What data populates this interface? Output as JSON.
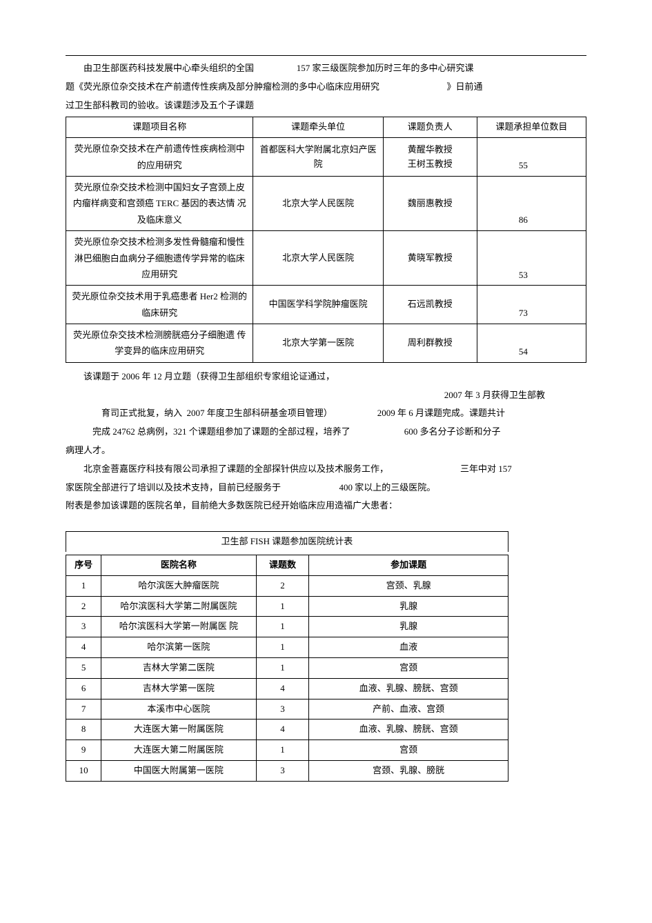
{
  "intro": {
    "p1a": "由卫生部医药科技发展中心牵头组织的全国",
    "p1b": "157 家三级医院参加历时三年的多中心研究课",
    "p2a": "题《荧光原位杂交技术在产前遗传性疾病及部分肿瘤检测的多中心临床应用研究",
    "p2b": "》日前通",
    "p3": "过卫生部科教司的验收。该课题涉及五个子课题"
  },
  "table1": {
    "headers": [
      "课题项目名称",
      "课题牵头单位",
      "课题负责人",
      "课题承担单位数目"
    ],
    "rows": [
      {
        "name": "荧光原位杂交技术在产前遗传性疾病检测中的应用研究",
        "unit": "首都医科大学附属北京妇产医院",
        "leader": "黄醒华教授\n王树玉教授",
        "count": "55"
      },
      {
        "name": "荧光原位杂交技术检测中国妇女子宫颈上皮内瘤样病变和宫颈癌  TERC 基因的表达情  况及临床意义",
        "unit": "北京大学人民医院",
        "leader": "魏丽惠教授",
        "count": "86"
      },
      {
        "name": "荧光原位杂交技术检测多发性骨髓瘤和慢性淋巴细胞白血病分子细胞遗传学异常的临床应用研究",
        "unit": "北京大学人民医院",
        "leader": "黄晓军教授",
        "count": "53"
      },
      {
        "name": "荧光原位杂交技术用于乳癌患者      Her2 检测的临床研究",
        "unit": "中国医学科学院肿瘤医院",
        "leader": "石远凯教授",
        "count": "73"
      },
      {
        "name": "荧光原位杂交技术检测膀胱癌分子细胞遗  传学变异的临床应用研究",
        "unit": "北京大学第一医院",
        "leader": "周利群教授",
        "count": "54"
      }
    ]
  },
  "mid": {
    "p1": "该课题于 2006 年 12 月立题（获得卫生部组织专家组论证通过，",
    "p1r": "2007 年 3 月获得卫生部教",
    "p2a": "育司正式批复，纳入  2007 年度卫生部科研基金项目管理）",
    "p2b": "2009 年 6 月课题完成。课题共计",
    "p3a": "完成 24762 总病例，321 个课题组参加了课题的全部过程，培养了",
    "p3b": "600 多名分子诊断和分子",
    "p4": "病理人才。",
    "p5a": "北京金菩嘉医疗科技有限公司承担了课题的全部探针供应以及技术服务工作，",
    "p5b": "三年中对 157",
    "p6a": "家医院全部进行了培训以及技术支持，目前已经服务于",
    "p6b": "400 家以上的三级医院。",
    "p7": "附表是参加该课题的医院名单，目前绝大多数医院已经开始临床应用造福广大患者："
  },
  "table2": {
    "title": "卫生部 FISH 课题参加医院统计表",
    "headers": [
      "序号",
      "医院名称",
      "课题数",
      "参加课题"
    ],
    "rows": [
      {
        "n": "1",
        "name": "哈尔滨医大肿瘤医院",
        "cnt": "2",
        "topics": "宫颈、乳腺"
      },
      {
        "n": "2",
        "name": "哈尔滨医科大学第二附属医院",
        "cnt": "1",
        "topics": "乳腺"
      },
      {
        "n": "3",
        "name": "哈尔滨医科大学第一附属医  院",
        "cnt": "1",
        "topics": "乳腺"
      },
      {
        "n": "4",
        "name": "哈尔滨第一医院",
        "cnt": "1",
        "topics": "血液"
      },
      {
        "n": "5",
        "name": "吉林大学第二医院",
        "cnt": "1",
        "topics": "宫颈"
      },
      {
        "n": "6",
        "name": "吉林大学第一医院",
        "cnt": "4",
        "topics": "血液、乳腺、膀胱、宫颈"
      },
      {
        "n": "7",
        "name": "本溪市中心医院",
        "cnt": "3",
        "topics": "产前、血液、宫颈"
      },
      {
        "n": "8",
        "name": "大连医大第一附属医院",
        "cnt": "4",
        "topics": "血液、乳腺、膀胱、宫颈"
      },
      {
        "n": "9",
        "name": "大连医大第二附属医院",
        "cnt": "1",
        "topics": "宫颈"
      },
      {
        "n": "10",
        "name": "中国医大附属第一医院",
        "cnt": "3",
        "topics": "宫颈、乳腺、膀胱"
      }
    ]
  }
}
